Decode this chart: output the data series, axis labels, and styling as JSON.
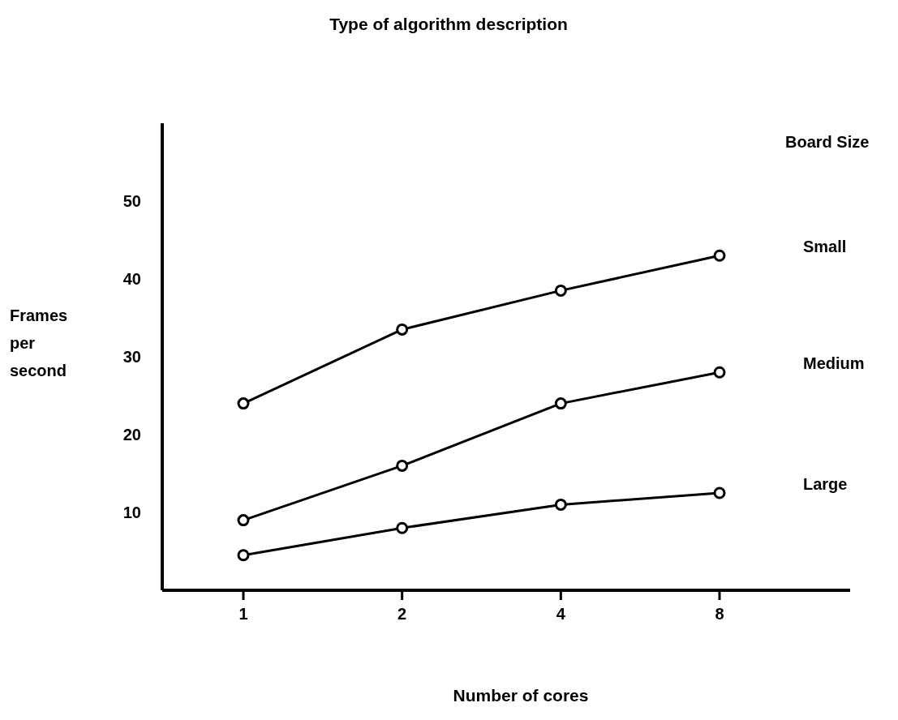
{
  "chart_data": {
    "type": "line",
    "title": "Type of algorithm description",
    "xlabel": "Number of cores",
    "ylabel": "Frames per second",
    "legend_title": "Board Size",
    "categories": [
      "1",
      "2",
      "4",
      "8"
    ],
    "series": [
      {
        "name": "Small",
        "color": "#000000",
        "values": [
          24,
          33.5,
          38.5,
          43
        ]
      },
      {
        "name": "Medium",
        "color": "#000000",
        "values": [
          9,
          16,
          24,
          28
        ]
      },
      {
        "name": "Large",
        "color": "#000000",
        "values": [
          4.5,
          8,
          11,
          12.5
        ]
      }
    ],
    "ylim": [
      0,
      60
    ],
    "yticks": [
      10,
      20,
      30,
      40,
      50
    ],
    "grid": false,
    "marker": "circle",
    "line_style": "solid"
  }
}
